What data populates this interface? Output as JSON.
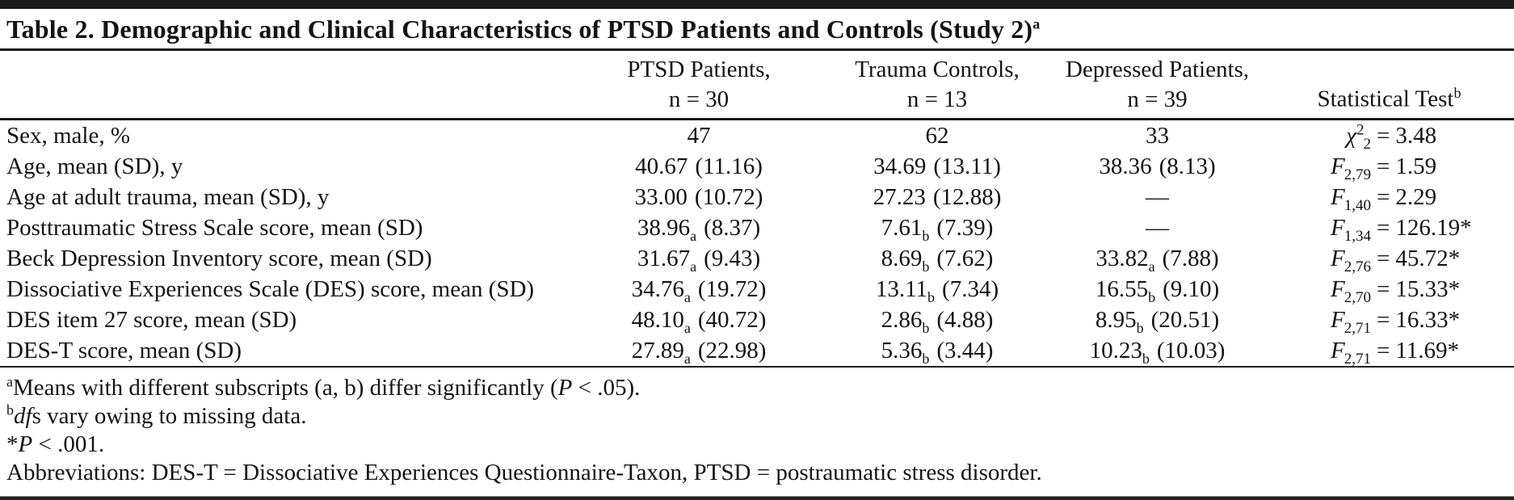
{
  "table": {
    "title": "Table 2. Demographic and Clinical Characteristics of PTSD Patients and Controls (Study 2)",
    "title_sup": "a",
    "equals": "=",
    "header": {
      "groups": [
        {
          "line1": "PTSD Patients,",
          "line2": "n = 30"
        },
        {
          "line1": "Trauma Controls,",
          "line2": "n = 13"
        },
        {
          "line1": "Depressed Patients,",
          "line2": "n = 39"
        }
      ],
      "stat": {
        "label": "Statistical Test",
        "sup": "b"
      }
    },
    "rows": [
      {
        "label": "Sex, male, %",
        "c1": {
          "mean": "47",
          "sub": "",
          "sd": ""
        },
        "c2": {
          "mean": "62",
          "sub": "",
          "sd": ""
        },
        "c3": {
          "mean": "33",
          "sub": "",
          "sd": ""
        },
        "stat": {
          "sym": "χ",
          "sup": "2",
          "sub": "2",
          "value": "3.48"
        }
      },
      {
        "label": "Age, mean (SD), y",
        "c1": {
          "mean": "40.67",
          "sub": "",
          "sd": "(11.16)"
        },
        "c2": {
          "mean": "34.69",
          "sub": "",
          "sd": "(13.11)"
        },
        "c3": {
          "mean": "38.36",
          "sub": "",
          "sd": "(8.13)"
        },
        "stat": {
          "sym": "F",
          "sup": "",
          "sub": "2,79",
          "value": "1.59"
        }
      },
      {
        "label": "Age at adult trauma, mean (SD), y",
        "c1": {
          "mean": "33.00",
          "sub": "",
          "sd": "(10.72)"
        },
        "c2": {
          "mean": "27.23",
          "sub": "",
          "sd": "(12.88)"
        },
        "c3": {
          "mean": "—",
          "sub": "",
          "sd": ""
        },
        "stat": {
          "sym": "F",
          "sup": "",
          "sub": "1,40",
          "value": "2.29"
        }
      },
      {
        "label": "Posttraumatic Stress Scale score, mean (SD)",
        "c1": {
          "mean": "38.96",
          "sub": "a",
          "sd": "(8.37)"
        },
        "c2": {
          "mean": "7.61",
          "sub": "b",
          "sd": "(7.39)"
        },
        "c3": {
          "mean": "—",
          "sub": "",
          "sd": ""
        },
        "stat": {
          "sym": "F",
          "sup": "",
          "sub": "1,34",
          "value": "126.19*"
        }
      },
      {
        "label": "Beck Depression Inventory score, mean (SD)",
        "c1": {
          "mean": "31.67",
          "sub": "a",
          "sd": "(9.43)"
        },
        "c2": {
          "mean": "8.69",
          "sub": "b",
          "sd": "(7.62)"
        },
        "c3": {
          "mean": "33.82",
          "sub": "a",
          "sd": "(7.88)"
        },
        "stat": {
          "sym": "F",
          "sup": "",
          "sub": "2,76",
          "value": "45.72*"
        }
      },
      {
        "label": "Dissociative Experiences Scale (DES) score, mean (SD)",
        "c1": {
          "mean": "34.76",
          "sub": "a",
          "sd": "(19.72)"
        },
        "c2": {
          "mean": "13.11",
          "sub": "b",
          "sd": "(7.34)"
        },
        "c3": {
          "mean": "16.55",
          "sub": "b",
          "sd": "(9.10)"
        },
        "stat": {
          "sym": "F",
          "sup": "",
          "sub": "2,70",
          "value": "15.33*"
        }
      },
      {
        "label": "DES item 27 score, mean (SD)",
        "c1": {
          "mean": "48.10",
          "sub": "a",
          "sd": "(40.72)"
        },
        "c2": {
          "mean": "2.86",
          "sub": "b",
          "sd": "(4.88)"
        },
        "c3": {
          "mean": "8.95",
          "sub": "b",
          "sd": "(20.51)"
        },
        "stat": {
          "sym": "F",
          "sup": "",
          "sub": "2,71",
          "value": "16.33*"
        }
      },
      {
        "label": "DES-T score, mean (SD)",
        "c1": {
          "mean": "27.89",
          "sub": "a",
          "sd": "(22.98)"
        },
        "c2": {
          "mean": "5.36",
          "sub": "b",
          "sd": "(3.44)"
        },
        "c3": {
          "mean": "10.23",
          "sub": "b",
          "sd": "(10.03)"
        },
        "stat": {
          "sym": "F",
          "sup": "",
          "sub": "2,71",
          "value": "11.69*"
        }
      }
    ],
    "footnotes": [
      {
        "sup": "a",
        "pre": "Means with different subscripts (a, b) differ significantly (",
        "italic": "P",
        "post": " < .05)."
      },
      {
        "sup": "b",
        "pre": "",
        "italic": "df",
        "post": "s vary owing to missing data."
      },
      {
        "sup": "",
        "pre": "*",
        "italic": "P",
        "post": " < .001."
      },
      {
        "sup": "",
        "pre": "Abbreviations: DES-T = Dissociative Experiences Questionnaire-Taxon, PTSD = postraumatic stress disorder.",
        "italic": "",
        "post": ""
      }
    ]
  }
}
